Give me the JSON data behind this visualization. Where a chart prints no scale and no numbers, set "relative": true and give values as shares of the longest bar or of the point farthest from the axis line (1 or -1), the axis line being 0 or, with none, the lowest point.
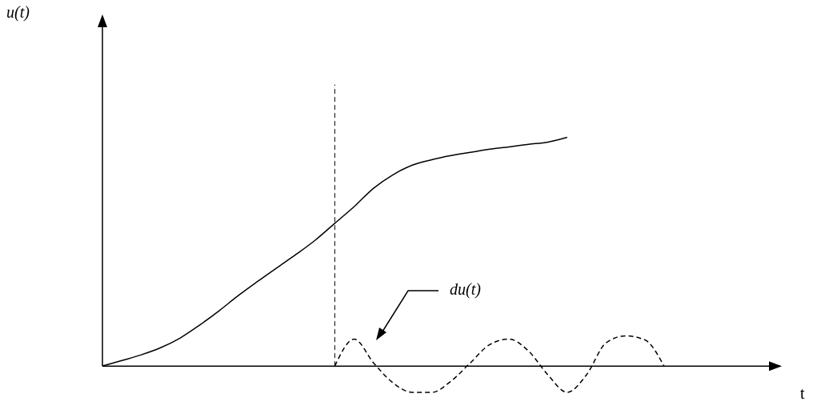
{
  "chart_data": {
    "type": "line",
    "relative": true,
    "xlabel": "t",
    "tick_labels": false,
    "categories": [
      null,
      null,
      null,
      null,
      null,
      null,
      null,
      null,
      null,
      null,
      null,
      null,
      null,
      null,
      null,
      null,
      null,
      null,
      null,
      null,
      null,
      null,
      null,
      null,
      null,
      null,
      null,
      null,
      null,
      null,
      null,
      null,
      null,
      null,
      null,
      null
    ],
    "series": [
      {
        "color": "#000000",
        "line_style": "solid",
        "values": [
          0,
          0.024,
          0.049,
          0.08,
          0.122,
          0.178,
          0.24,
          0.307,
          0.369,
          0.429,
          0.488,
          0.551,
          0.624,
          0.697,
          0.777,
          0.836,
          0.878,
          0.902,
          0.92,
          0.934,
          0.948,
          0.958,
          0.969,
          0.979,
          1,
          null,
          null,
          null,
          null,
          null,
          null,
          null,
          null,
          null,
          null,
          null
        ]
      },
      {
        "color": "#000000",
        "line_style": "dashed",
        "values": [
          null,
          null,
          null,
          null,
          null,
          null,
          null,
          null,
          null,
          null,
          null,
          null,
          0,
          0.118,
          0.014,
          -0.073,
          -0.115,
          -0.115,
          -0.066,
          0.014,
          0.094,
          0.118,
          0.066,
          -0.038,
          -0.115,
          -0.038,
          0.101,
          0.132,
          0.115,
          0,
          null,
          null,
          null,
          null,
          null,
          null
        ]
      }
    ],
    "annotations": [
      "u(t)",
      "du(t)"
    ]
  }
}
